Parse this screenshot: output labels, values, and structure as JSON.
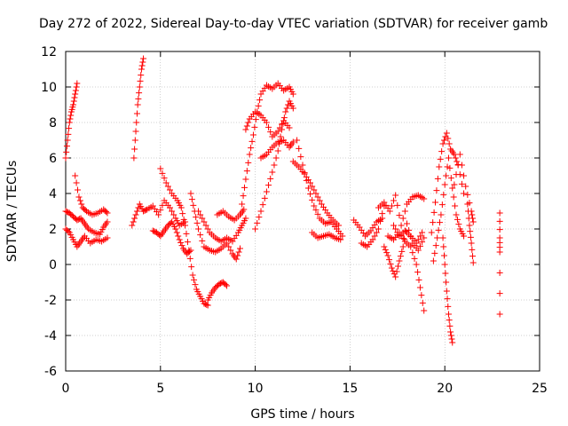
{
  "chart_data": {
    "type": "scatter",
    "title": "Day 272 of 2022, Sidereal Day-to-day VTEC variation (SDTVAR) for receiver gamb",
    "xlabel": "GPS time / hours",
    "ylabel": "SDTVAR / TECUs",
    "xlim": [
      0,
      25
    ],
    "ylim": [
      -6,
      12
    ],
    "xticks": [
      0,
      5,
      10,
      15,
      20,
      25
    ],
    "xtick_labels": [
      "0",
      "5",
      "10",
      "15",
      "20",
      "25"
    ],
    "yticks": [
      -6,
      -4,
      -2,
      0,
      2,
      4,
      6,
      8,
      10,
      12
    ],
    "ytick_labels": [
      "-6",
      "-4",
      "-2",
      "0",
      "2",
      "4",
      "6",
      "8",
      "10",
      "12"
    ],
    "grid": true,
    "marker": "+",
    "color": "#ff0000",
    "series": [
      {
        "name": "trace-01",
        "x": [
          0.0,
          0.1,
          0.2,
          0.3,
          0.4,
          0.5,
          0.6
        ],
        "y": [
          6.0,
          7.0,
          8.0,
          8.6,
          9.0,
          9.6,
          10.2
        ]
      },
      {
        "name": "trace-02",
        "x": [
          0.0,
          0.2,
          0.4,
          0.6,
          0.8,
          1.0,
          1.2,
          1.5,
          1.8,
          2.0,
          2.2
        ],
        "y": [
          3.0,
          2.9,
          2.7,
          2.5,
          2.6,
          2.3,
          2.0,
          1.8,
          1.7,
          2.1,
          2.4
        ]
      },
      {
        "name": "trace-03",
        "x": [
          0.0,
          0.2,
          0.4,
          0.6,
          0.8,
          1.0,
          1.3,
          1.6,
          1.9,
          2.2
        ],
        "y": [
          2.0,
          1.8,
          1.4,
          1.0,
          1.3,
          1.6,
          1.2,
          1.4,
          1.3,
          1.5
        ]
      },
      {
        "name": "trace-04",
        "x": [
          0.5,
          0.7,
          0.9,
          1.1,
          1.4,
          1.7,
          2.0,
          2.2
        ],
        "y": [
          5.0,
          3.8,
          3.2,
          3.0,
          2.8,
          2.9,
          3.1,
          2.9
        ]
      },
      {
        "name": "trace-05",
        "x": [
          3.6,
          3.7,
          3.8,
          3.9,
          4.0,
          4.1
        ],
        "y": [
          6.0,
          7.5,
          9.0,
          10.0,
          11.0,
          11.6
        ]
      },
      {
        "name": "trace-06",
        "x": [
          3.5,
          3.7,
          3.9,
          4.1,
          4.3,
          4.6,
          4.9,
          5.2,
          5.5,
          5.8,
          6.0,
          6.3
        ],
        "y": [
          2.2,
          2.8,
          3.4,
          3.0,
          3.1,
          3.3,
          2.8,
          3.6,
          3.2,
          2.6,
          2.2,
          2.4
        ]
      },
      {
        "name": "trace-07",
        "x": [
          4.6,
          4.8,
          5.0,
          5.2,
          5.4,
          5.6,
          5.8,
          6.0,
          6.2,
          6.4,
          6.6
        ],
        "y": [
          1.9,
          1.8,
          1.6,
          1.9,
          2.2,
          2.4,
          2.0,
          1.4,
          0.9,
          0.6,
          0.8
        ]
      },
      {
        "name": "trace-08",
        "x": [
          5.0,
          5.3,
          5.6,
          5.9,
          6.1,
          6.3,
          6.5,
          6.7,
          6.9,
          7.1,
          7.3,
          7.5
        ],
        "y": [
          5.4,
          4.6,
          4.0,
          3.6,
          3.2,
          2.2,
          0.8,
          -0.6,
          -1.4,
          -1.8,
          -2.2,
          -2.3
        ]
      },
      {
        "name": "trace-09",
        "x": [
          7.5,
          7.7,
          7.9,
          8.1,
          8.3,
          8.5
        ],
        "y": [
          -2.0,
          -1.6,
          -1.3,
          -1.1,
          -1.0,
          -1.2
        ]
      },
      {
        "name": "trace-10",
        "x": [
          6.6,
          6.8,
          7.0,
          7.3,
          7.6,
          7.9,
          8.2,
          8.5,
          8.8,
          9.0,
          9.2
        ],
        "y": [
          4.0,
          3.0,
          2.0,
          1.0,
          0.8,
          0.7,
          0.9,
          1.2,
          0.6,
          0.3,
          0.9
        ]
      },
      {
        "name": "trace-11",
        "x": [
          7.0,
          7.3,
          7.6,
          7.9,
          8.2,
          8.5,
          8.8,
          9.1,
          9.3,
          9.5
        ],
        "y": [
          3.0,
          2.4,
          1.8,
          1.5,
          1.3,
          1.5,
          1.3,
          1.8,
          2.2,
          2.6
        ]
      },
      {
        "name": "trace-12",
        "x": [
          8.0,
          8.3,
          8.6,
          8.9,
          9.2,
          9.4
        ],
        "y": [
          2.8,
          3.0,
          2.7,
          2.5,
          2.8,
          3.1
        ]
      },
      {
        "name": "trace-13",
        "x": [
          9.3,
          9.5,
          9.7,
          9.9,
          10.1,
          10.3,
          10.6,
          10.9,
          11.2,
          11.5,
          11.8,
          12.0
        ],
        "y": [
          3.4,
          4.8,
          6.2,
          7.3,
          8.6,
          9.6,
          10.1,
          9.9,
          10.2,
          9.8,
          10.0,
          9.6
        ]
      },
      {
        "name": "trace-14",
        "x": [
          9.5,
          9.7,
          10.0,
          10.3,
          10.6,
          10.9,
          11.2,
          11.5,
          11.8
        ],
        "y": [
          7.6,
          8.2,
          8.6,
          8.4,
          8.0,
          7.2,
          7.5,
          8.1,
          7.7
        ]
      },
      {
        "name": "trace-15",
        "x": [
          10.0,
          10.3,
          10.6,
          10.9,
          11.2,
          11.4,
          11.6,
          11.8,
          12.0
        ],
        "y": [
          2.0,
          3.0,
          4.1,
          5.2,
          6.4,
          7.6,
          8.6,
          9.2,
          8.8
        ]
      },
      {
        "name": "trace-16",
        "x": [
          10.3,
          10.6,
          10.9,
          11.2,
          11.5,
          11.8,
          12.0
        ],
        "y": [
          6.0,
          6.2,
          6.6,
          6.9,
          7.0,
          6.6,
          6.9
        ]
      },
      {
        "name": "trace-17",
        "x": [
          12.0,
          12.3,
          12.6,
          12.9,
          13.2,
          13.5,
          13.8,
          14.1,
          14.4
        ],
        "y": [
          5.8,
          5.5,
          5.1,
          4.6,
          4.0,
          3.4,
          2.9,
          2.5,
          2.2
        ]
      },
      {
        "name": "trace-18",
        "x": [
          12.2,
          12.5,
          12.8,
          13.1,
          13.4,
          13.7,
          14.0,
          14.3,
          14.6
        ],
        "y": [
          7.0,
          5.6,
          4.3,
          3.3,
          2.6,
          2.3,
          2.4,
          2.0,
          1.6
        ]
      },
      {
        "name": "trace-19",
        "x": [
          13.0,
          13.3,
          13.6,
          13.9,
          14.2,
          14.5
        ],
        "y": [
          1.8,
          1.5,
          1.6,
          1.7,
          1.5,
          1.4
        ]
      },
      {
        "name": "trace-20",
        "x": [
          15.2,
          15.5,
          15.8,
          16.1,
          16.4,
          16.7
        ],
        "y": [
          2.5,
          2.1,
          1.6,
          1.9,
          2.4,
          2.6
        ]
      },
      {
        "name": "trace-21",
        "x": [
          15.6,
          15.9,
          16.2,
          16.5,
          16.8
        ],
        "y": [
          1.2,
          1.0,
          1.4,
          2.0,
          3.3
        ]
      },
      {
        "name": "trace-22",
        "x": [
          16.5,
          16.8,
          17.1,
          17.4,
          17.7,
          18.0,
          18.3,
          18.6,
          18.9
        ],
        "y": [
          3.2,
          3.5,
          3.0,
          3.9,
          2.2,
          3.4,
          3.8,
          3.9,
          3.7
        ]
      },
      {
        "name": "trace-23",
        "x": [
          16.8,
          17.0,
          17.2,
          17.4,
          17.6,
          17.8,
          18.0,
          18.3,
          18.6,
          18.9
        ],
        "y": [
          1.0,
          0.5,
          -0.2,
          -0.7,
          0.2,
          1.0,
          2.3,
          1.2,
          0.8,
          1.5
        ]
      },
      {
        "name": "trace-24",
        "x": [
          17.0,
          17.3,
          17.6,
          17.9,
          18.2,
          18.5,
          18.7,
          18.9
        ],
        "y": [
          1.6,
          1.4,
          1.8,
          1.3,
          1.0,
          0.0,
          -1.3,
          -2.6
        ]
      },
      {
        "name": "trace-25",
        "x": [
          17.3,
          17.6,
          17.9,
          18.2,
          18.5,
          18.8
        ],
        "y": [
          2.2,
          1.6,
          1.9,
          1.6,
          1.2,
          1.8
        ]
      },
      {
        "name": "trace-26",
        "x": [
          19.3,
          19.5,
          19.7,
          19.9,
          20.1,
          20.3,
          20.5,
          20.7,
          21.0
        ],
        "y": [
          1.8,
          3.5,
          5.5,
          6.8,
          7.4,
          6.5,
          6.2,
          5.6,
          4.0
        ]
      },
      {
        "name": "trace-27",
        "x": [
          19.4,
          19.6,
          19.8,
          20.0,
          20.2,
          20.4,
          20.6,
          20.8,
          21.0
        ],
        "y": [
          0.2,
          1.5,
          2.8,
          4.5,
          6.0,
          4.3,
          2.8,
          2.0,
          1.6
        ]
      },
      {
        "name": "trace-28",
        "x": [
          19.9,
          20.0,
          20.1,
          20.2,
          20.3,
          20.4
        ],
        "y": [
          1.5,
          0.0,
          -1.5,
          -2.8,
          -3.8,
          -4.4
        ]
      },
      {
        "name": "trace-29",
        "x": [
          20.5,
          20.8,
          21.1,
          21.4,
          21.5
        ],
        "y": [
          4.5,
          6.2,
          4.4,
          3.0,
          2.4
        ]
      },
      {
        "name": "trace-30",
        "x": [
          21.2,
          21.3,
          21.4,
          21.5
        ],
        "y": [
          3.4,
          2.2,
          1.2,
          0.1
        ]
      },
      {
        "name": "trace-31",
        "x": [
          22.9,
          22.9,
          22.9,
          22.9
        ],
        "y": [
          2.9,
          1.5,
          0.7,
          -2.8
        ]
      }
    ]
  }
}
